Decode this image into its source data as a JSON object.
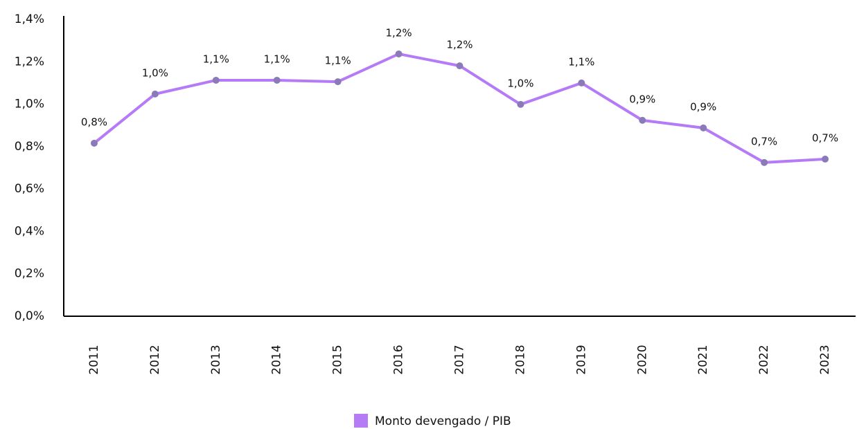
{
  "chart_data": {
    "type": "line",
    "categories": [
      "2011",
      "2012",
      "2013",
      "2014",
      "2015",
      "2016",
      "2017",
      "2018",
      "2019",
      "2020",
      "2021",
      "2022",
      "2023"
    ],
    "series": [
      {
        "name": "Monto devengado / PIB",
        "color": "#b57bf7",
        "marker_color": "#8b7ab8",
        "values": [
          0.816,
          1.048,
          1.113,
          1.113,
          1.106,
          1.237,
          1.181,
          0.999,
          1.1,
          0.924,
          0.888,
          0.725,
          0.741
        ],
        "value_labels": [
          "0,8%",
          "1,0%",
          "1,1%",
          "1,1%",
          "1,1%",
          "1,2%",
          "1,2%",
          "1,0%",
          "1,1%",
          "0,9%",
          "0,9%",
          "0,7%",
          "0,7%"
        ]
      }
    ],
    "ylim": [
      0,
      1.4
    ],
    "yticks": [
      {
        "value": 0,
        "label": "0,0%"
      },
      {
        "value": 0.2,
        "label": "0,2%"
      },
      {
        "value": 0.4,
        "label": "0,4%"
      },
      {
        "value": 0.6,
        "label": "0,6%"
      },
      {
        "value": 0.8,
        "label": "0,8%"
      },
      {
        "value": 1.0,
        "label": "1,0%"
      },
      {
        "value": 1.2,
        "label": "1,2%"
      },
      {
        "value": 1.4,
        "label": "1,4%"
      }
    ],
    "grid": false,
    "legend": "bottom"
  }
}
